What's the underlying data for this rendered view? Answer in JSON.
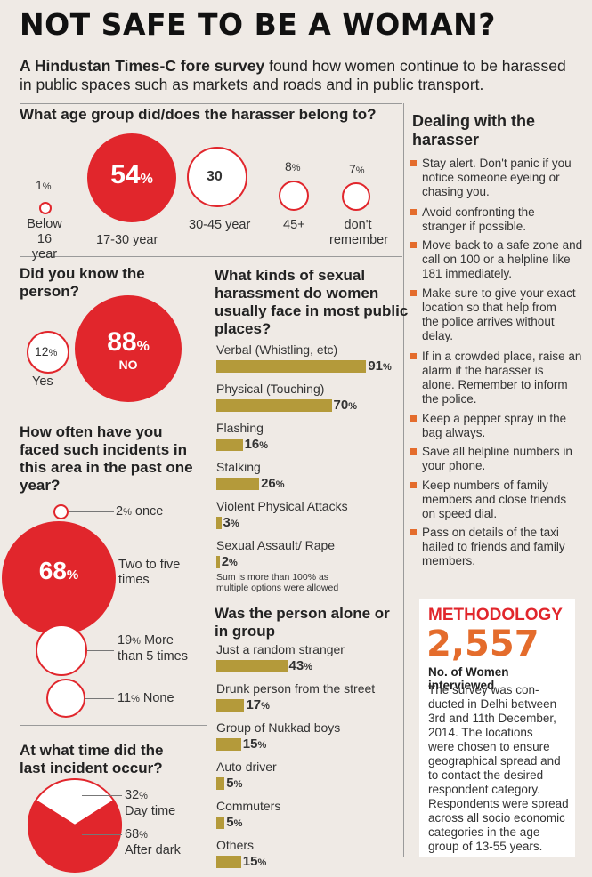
{
  "title": "NOT SAFE TO BE A WOMAN?",
  "intro": {
    "lead": "A Hindustan Times-C fore survey",
    "text": " found how women continue to be harassed in public spaces such as markets and roads and in public transport."
  },
  "age": {
    "question": "What age group did/does the harasser belong to?",
    "items": [
      {
        "pct": "1",
        "label1": "Below",
        "label2": "16 year"
      },
      {
        "pct": "54",
        "label1": "17-30 year",
        "label2": ""
      },
      {
        "pct": "30",
        "label1": "30-45 year",
        "label2": ""
      },
      {
        "pct": "8",
        "label1": "45+",
        "label2": ""
      },
      {
        "pct": "7",
        "label1": "don't",
        "label2": "remember"
      }
    ]
  },
  "know": {
    "question1": "Did you know the",
    "question2": "person?",
    "yes_pct": "12",
    "yes_label": "Yes",
    "no_pct": "88",
    "no_label": "NO"
  },
  "often": {
    "q1": "How often have you",
    "q2": "faced such incidents in",
    "q3": "this area in the past one",
    "q4": "year?",
    "items": [
      {
        "pct": "2",
        "label1": "once",
        "label2": ""
      },
      {
        "pct": "68",
        "label1": "Two to five",
        "label2": "times"
      },
      {
        "pct": "19",
        "label1": "More",
        "label2": "than 5 times"
      },
      {
        "pct": "11",
        "label1": "None",
        "label2": ""
      }
    ]
  },
  "time": {
    "q1": "At what time did the",
    "q2": "last incident occur?",
    "day_pct": "32",
    "day_label": "Day time",
    "dark_pct": "68",
    "dark_label": "After dark"
  },
  "kinds": {
    "q1": "What kinds of sexual",
    "q2": "harassment do women",
    "q3": "usually face in most public",
    "q4": "places?",
    "note1": "Sum is more than 100% as",
    "note2": "multiple options were allowed"
  },
  "alone": {
    "q1": "Was the person alone or",
    "q2": "in group"
  },
  "dealing": {
    "title1": "Dealing with the",
    "title2": "harasser",
    "tips": [
      [
        "Stay alert. Don't panic if you",
        "notice someone eyeing or",
        "chasing you."
      ],
      [
        "Avoid confronting the",
        "stranger if possible."
      ],
      [
        "Move back to a safe zone and",
        "call on 100 or a helpline like",
        "181 immediately."
      ],
      [
        " Make sure to give your exact",
        "location so that help from",
        "the police arrives without",
        "delay."
      ],
      [
        "If in a crowded place, raise an",
        "alarm if the harasser is",
        "alone. Remember to inform",
        "the police."
      ],
      [
        "Keep a pepper spray in the",
        "bag always."
      ],
      [
        "Save all helpline numbers in",
        "your phone."
      ],
      [
        "Keep numbers of family",
        "members and close friends",
        "on speed dial."
      ],
      [
        "Pass on details of the taxi",
        "hailed to friends and family",
        "members."
      ]
    ]
  },
  "methodology": {
    "title": "METHODOLOGY",
    "number": "2,557",
    "sub": "No. of Women interviewed",
    "text": [
      "The survey was con-",
      "ducted in Delhi between",
      "3rd and 11th December,",
      "2014. The locations",
      "were chosen to ensure",
      "geographical spread and",
      "to contact the desired",
      "respondent category.",
      "Respondents were spread",
      "across all socio economic",
      "categories in the age",
      "group of 13-55 years."
    ]
  },
  "colors": {
    "red": "#e1262c",
    "bar": "#b49a3a",
    "bullet": "#e46c2c"
  },
  "chart_data": [
    {
      "type": "bubble",
      "title": "What age group did/does the harasser belong to?",
      "categories": [
        "Below 16 year",
        "17-30 year",
        "30-45 year",
        "45+",
        "don't remember"
      ],
      "values": [
        1,
        54,
        30,
        8,
        7
      ],
      "unit": "%"
    },
    {
      "type": "bubble",
      "title": "Did you know the person?",
      "categories": [
        "Yes",
        "NO"
      ],
      "values": [
        12,
        88
      ],
      "unit": "%"
    },
    {
      "type": "bubble",
      "title": "How often have you faced such incidents in this area in the past one year?",
      "categories": [
        "once",
        "Two to five times",
        "More than 5 times",
        "None"
      ],
      "values": [
        2,
        68,
        19,
        11
      ],
      "unit": "%"
    },
    {
      "type": "pie",
      "title": "At what time did the last incident occur?",
      "categories": [
        "Day time",
        "After dark"
      ],
      "values": [
        32,
        68
      ],
      "unit": "%"
    },
    {
      "type": "bar",
      "orientation": "horizontal",
      "title": "What kinds of sexual harassment do women usually face in most public places?",
      "categories": [
        "Verbal (Whistling, etc)",
        "Physical (Touching)",
        "Flashing",
        "Stalking",
        "Violent Physical Attacks",
        "Sexual Assault/ Rape"
      ],
      "values": [
        91,
        70,
        16,
        26,
        3,
        2
      ],
      "unit": "%"
    },
    {
      "type": "bar",
      "orientation": "horizontal",
      "title": "Was the person alone or in group",
      "categories": [
        "Just a random stranger",
        "Drunk person from the street",
        "Group of Nukkad boys",
        "Auto driver",
        "Commuters",
        "Others"
      ],
      "values": [
        43,
        17,
        15,
        5,
        5,
        15
      ],
      "unit": "%"
    }
  ]
}
